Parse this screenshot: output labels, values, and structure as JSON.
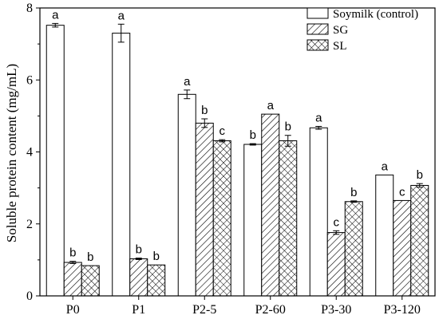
{
  "chart_data": {
    "type": "bar",
    "ylabel": "Soluble protein content (mg/mL)",
    "xlabel": "",
    "categories": [
      "P0",
      "P1",
      "P2-5",
      "P2-60",
      "P3-30",
      "P3-120"
    ],
    "ylim": [
      0,
      8
    ],
    "yticks": [
      0,
      2,
      4,
      6,
      8
    ],
    "series": [
      {
        "name": "Soymilk (control)",
        "pattern": "none",
        "values": [
          7.52,
          7.3,
          5.6,
          4.21,
          4.67,
          3.36
        ],
        "errors": [
          0.05,
          0.25,
          0.12,
          0.02,
          0.04,
          0.0
        ],
        "labels": [
          "a",
          "a",
          "a",
          "b",
          "a",
          "a"
        ]
      },
      {
        "name": "SG",
        "pattern": "diagonal-hatch",
        "values": [
          0.93,
          1.03,
          4.8,
          5.05,
          1.76,
          2.65
        ],
        "errors": [
          0.03,
          0.02,
          0.12,
          0.0,
          0.05,
          0.0
        ],
        "labels": [
          "b",
          "b",
          "b",
          "a",
          "c",
          "c"
        ]
      },
      {
        "name": "SL",
        "pattern": "crosshatch",
        "values": [
          0.84,
          0.86,
          4.31,
          4.31,
          2.62,
          3.07
        ],
        "errors": [
          0.0,
          0.0,
          0.03,
          0.15,
          0.02,
          0.05
        ],
        "labels": [
          "b",
          "b",
          "c",
          "b",
          "b",
          "b"
        ]
      }
    ],
    "legend_position": "top-right",
    "grid": false
  }
}
